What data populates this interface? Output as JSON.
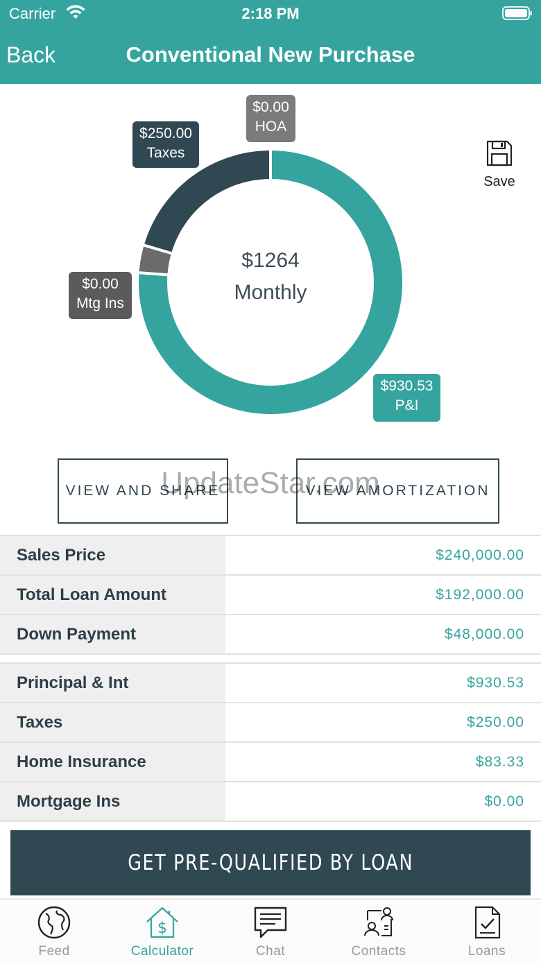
{
  "status_bar": {
    "carrier": "Carrier",
    "time": "2:18 PM"
  },
  "nav": {
    "back_label": "Back",
    "title": "Conventional New Purchase"
  },
  "summary": {
    "amount": "$1264",
    "label": "Monthly"
  },
  "chart_data": {
    "type": "pie",
    "title": "",
    "slices": [
      {
        "label": "P&I",
        "value": 930.53,
        "display_value": "$930.53",
        "color": "#35a49f"
      },
      {
        "label": "Mtg Ins",
        "value": 0.0,
        "display_value": "$0.00",
        "color": "#6b6b6b"
      },
      {
        "label": "Taxes",
        "value": 250.0,
        "display_value": "$250.00",
        "color": "#2f4851"
      },
      {
        "label": "HOA",
        "value": 0.0,
        "display_value": "$0.00",
        "color": "#7b7b7b"
      }
    ]
  },
  "save": {
    "label": "Save",
    "icon": "floppy-disk-icon"
  },
  "buttons": {
    "view_share": "VIEW AND SHARE",
    "view_amortization": "VIEW AMORTIZATION"
  },
  "watermark": "UpdateStar.com",
  "loan_table": [
    {
      "label": "Sales Price",
      "value": "$240,000.00"
    },
    {
      "label": "Total Loan Amount",
      "value": "$192,000.00"
    },
    {
      "label": "Down Payment",
      "value": "$48,000.00"
    }
  ],
  "payment_table": [
    {
      "label": "Principal & Int",
      "value": "$930.53"
    },
    {
      "label": "Taxes",
      "value": "$250.00"
    },
    {
      "label": "Home Insurance",
      "value": "$83.33"
    },
    {
      "label": "Mortgage Ins",
      "value": "$0.00"
    }
  ],
  "prequal_label": "GET PRE-QUALIFIED BY LOAN",
  "tabs": [
    {
      "label": "Feed",
      "icon": "globe-icon",
      "active": false
    },
    {
      "label": "Calculator",
      "icon": "house-dollar-icon",
      "active": true
    },
    {
      "label": "Chat",
      "icon": "chat-bubble-icon",
      "active": false
    },
    {
      "label": "Contacts",
      "icon": "contacts-icon",
      "active": false
    },
    {
      "label": "Loans",
      "icon": "document-check-icon",
      "active": false
    }
  ],
  "colors": {
    "accent": "#35a49f",
    "dark": "#2f4851",
    "row_label_bg": "#efefef"
  }
}
